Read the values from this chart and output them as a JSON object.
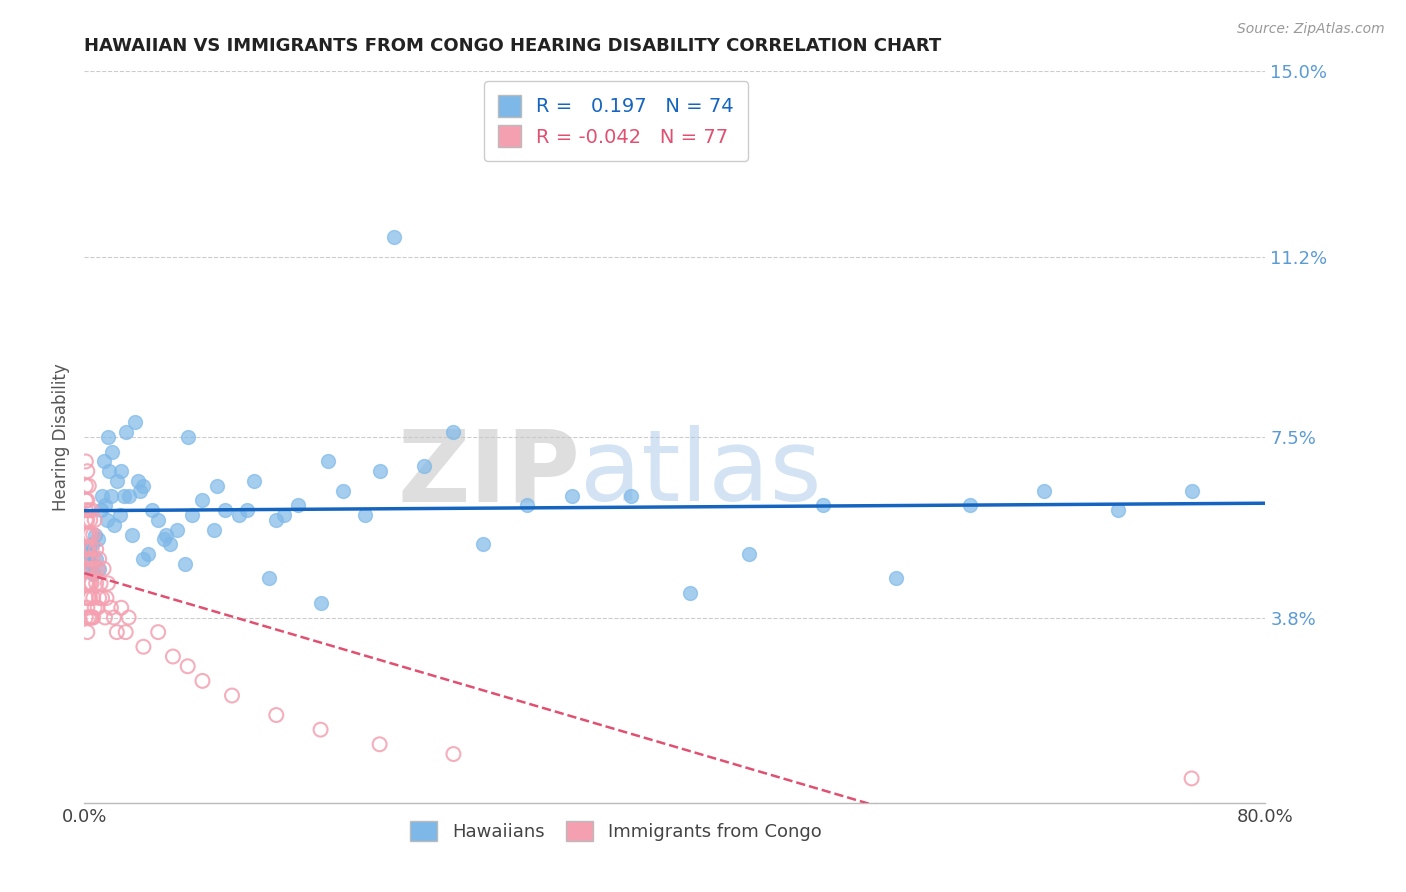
{
  "title": "HAWAIIAN VS IMMIGRANTS FROM CONGO HEARING DISABILITY CORRELATION CHART",
  "source": "Source: ZipAtlas.com",
  "ylabel": "Hearing Disability",
  "xlim": [
    0.0,
    0.8
  ],
  "ylim": [
    0.0,
    0.15
  ],
  "yticks": [
    0.0,
    0.038,
    0.075,
    0.112,
    0.15
  ],
  "ytick_labels": [
    "",
    "3.8%",
    "7.5%",
    "11.2%",
    "15.0%"
  ],
  "xticks": [
    0.0,
    0.8
  ],
  "xtick_labels": [
    "0.0%",
    "80.0%"
  ],
  "hawaiian_color": "#7EB8E8",
  "congo_color": "#F4A0B0",
  "trendline_blue": "#1565C0",
  "trendline_pink": "#E05070",
  "R_hawaiian": 0.197,
  "N_hawaiian": 74,
  "R_congo": -0.042,
  "N_congo": 77,
  "watermark_zip": "ZIP",
  "watermark_atlas": "atlas",
  "hawaiian_x": [
    0.001,
    0.002,
    0.003,
    0.004,
    0.005,
    0.005,
    0.006,
    0.007,
    0.008,
    0.009,
    0.01,
    0.011,
    0.012,
    0.013,
    0.014,
    0.015,
    0.016,
    0.017,
    0.018,
    0.019,
    0.02,
    0.022,
    0.024,
    0.025,
    0.027,
    0.028,
    0.03,
    0.032,
    0.034,
    0.036,
    0.038,
    0.04,
    0.043,
    0.046,
    0.05,
    0.054,
    0.058,
    0.063,
    0.068,
    0.073,
    0.08,
    0.088,
    0.095,
    0.105,
    0.115,
    0.125,
    0.135,
    0.145,
    0.16,
    0.175,
    0.19,
    0.21,
    0.23,
    0.25,
    0.27,
    0.3,
    0.33,
    0.37,
    0.41,
    0.45,
    0.5,
    0.55,
    0.6,
    0.65,
    0.7,
    0.75,
    0.04,
    0.055,
    0.07,
    0.09,
    0.11,
    0.13,
    0.165,
    0.2
  ],
  "hawaiian_y": [
    0.05,
    0.048,
    0.052,
    0.051,
    0.049,
    0.053,
    0.047,
    0.055,
    0.05,
    0.054,
    0.048,
    0.06,
    0.063,
    0.07,
    0.061,
    0.058,
    0.075,
    0.068,
    0.063,
    0.072,
    0.057,
    0.066,
    0.059,
    0.068,
    0.063,
    0.076,
    0.063,
    0.055,
    0.078,
    0.066,
    0.064,
    0.05,
    0.051,
    0.06,
    0.058,
    0.054,
    0.053,
    0.056,
    0.049,
    0.059,
    0.062,
    0.056,
    0.06,
    0.059,
    0.066,
    0.046,
    0.059,
    0.061,
    0.041,
    0.064,
    0.059,
    0.116,
    0.069,
    0.076,
    0.053,
    0.061,
    0.063,
    0.063,
    0.043,
    0.051,
    0.061,
    0.046,
    0.061,
    0.064,
    0.06,
    0.064,
    0.065,
    0.055,
    0.075,
    0.065,
    0.06,
    0.058,
    0.07,
    0.068
  ],
  "congo_x": [
    0.001,
    0.001,
    0.001,
    0.001,
    0.001,
    0.001,
    0.001,
    0.001,
    0.001,
    0.001,
    0.001,
    0.001,
    0.002,
    0.002,
    0.002,
    0.002,
    0.002,
    0.002,
    0.002,
    0.002,
    0.002,
    0.003,
    0.003,
    0.003,
    0.003,
    0.003,
    0.003,
    0.003,
    0.003,
    0.003,
    0.004,
    0.004,
    0.004,
    0.004,
    0.004,
    0.004,
    0.005,
    0.005,
    0.005,
    0.005,
    0.005,
    0.006,
    0.006,
    0.006,
    0.006,
    0.007,
    0.007,
    0.007,
    0.008,
    0.008,
    0.009,
    0.009,
    0.01,
    0.01,
    0.011,
    0.012,
    0.013,
    0.014,
    0.015,
    0.016,
    0.018,
    0.02,
    0.022,
    0.025,
    0.028,
    0.03,
    0.04,
    0.05,
    0.06,
    0.07,
    0.08,
    0.1,
    0.13,
    0.16,
    0.2,
    0.25,
    0.75
  ],
  "congo_y": [
    0.05,
    0.06,
    0.045,
    0.065,
    0.055,
    0.038,
    0.07,
    0.048,
    0.058,
    0.042,
    0.052,
    0.062,
    0.048,
    0.058,
    0.045,
    0.062,
    0.052,
    0.04,
    0.068,
    0.035,
    0.055,
    0.05,
    0.045,
    0.06,
    0.038,
    0.052,
    0.055,
    0.042,
    0.065,
    0.048,
    0.055,
    0.045,
    0.058,
    0.038,
    0.05,
    0.042,
    0.052,
    0.045,
    0.038,
    0.06,
    0.048,
    0.05,
    0.042,
    0.038,
    0.055,
    0.048,
    0.04,
    0.058,
    0.045,
    0.052,
    0.048,
    0.04,
    0.05,
    0.042,
    0.045,
    0.042,
    0.048,
    0.038,
    0.042,
    0.045,
    0.04,
    0.038,
    0.035,
    0.04,
    0.035,
    0.038,
    0.032,
    0.035,
    0.03,
    0.028,
    0.025,
    0.022,
    0.018,
    0.015,
    0.012,
    0.01,
    0.005
  ]
}
